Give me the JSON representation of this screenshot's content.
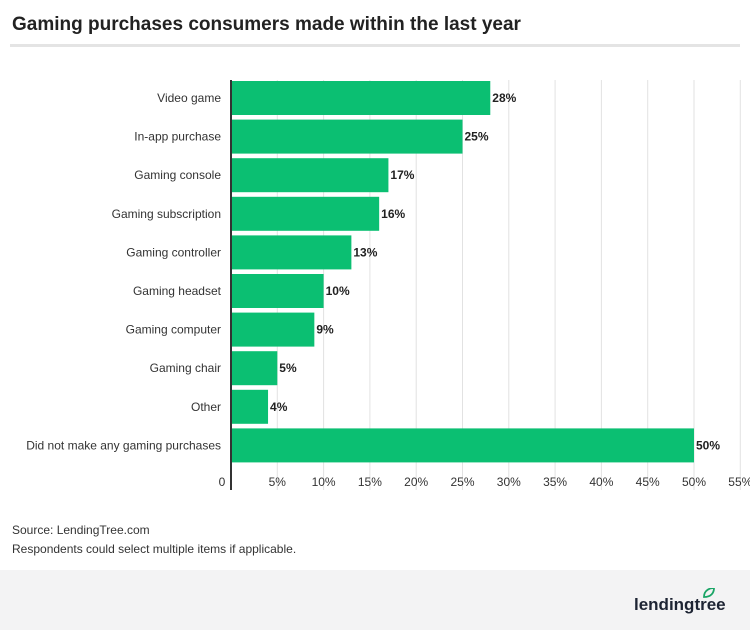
{
  "chart_data": {
    "type": "bar",
    "orientation": "horizontal",
    "title": "Gaming purchases consumers made within the last year",
    "categories": [
      "Video game",
      "In-app purchase",
      "Gaming console",
      "Gaming subscription",
      "Gaming controller",
      "Gaming headset",
      "Gaming computer",
      "Gaming chair",
      "Other",
      "Did not make any gaming purchases"
    ],
    "values": [
      28,
      25,
      17,
      16,
      13,
      10,
      9,
      5,
      4,
      50
    ],
    "data_labels": [
      "28%",
      "25%",
      "17%",
      "16%",
      "13%",
      "10%",
      "9%",
      "5%",
      "4%",
      "50%"
    ],
    "xlim": [
      0,
      55
    ],
    "x_ticks": [
      "0",
      "5%",
      "10%",
      "15%",
      "20%",
      "25%",
      "30%",
      "35%",
      "40%",
      "45%",
      "50%",
      "55%"
    ],
    "grid": true,
    "bar_color": "#0bbf72"
  },
  "footer": {
    "source": "Source: LendingTree.com",
    "note": "Respondents could select multiple items if applicable.",
    "logo_text": "lendingtree",
    "logo_color": "#1aa566"
  }
}
